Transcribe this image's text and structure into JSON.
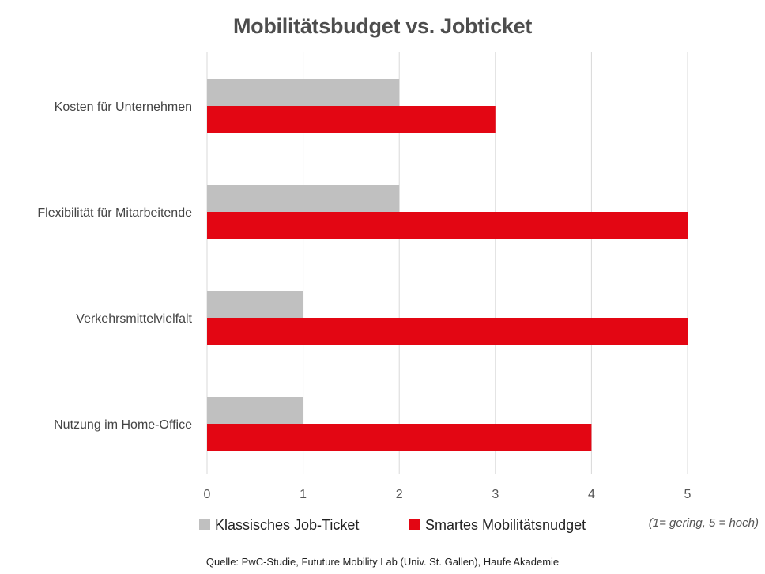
{
  "chart_data": {
    "type": "bar",
    "orientation": "horizontal",
    "title": "Mobilitätsbudget vs. Jobticket",
    "categories": [
      "Kosten für Unternehmen",
      "Flexibilität für Mitarbeitende",
      "Verkehrsmittelvielfalt",
      "Nutzung im Home-Office"
    ],
    "series": [
      {
        "name": "Klassisches Job-Ticket",
        "values": [
          2,
          2,
          1,
          1
        ],
        "color": "#c0c0c0"
      },
      {
        "name": "Smartes Mobilitätsnudget",
        "values": [
          3,
          5,
          5,
          4
        ],
        "color": "#e30613"
      }
    ],
    "xlim": [
      0,
      5
    ],
    "xticks": [
      "0",
      "1",
      "2",
      "3",
      "4",
      "5"
    ],
    "grid": true,
    "legend_position": "bottom",
    "note": "(1= gering, 5 = hoch)",
    "source": "Quelle: PwC-Studie, Fututure Mobility Lab (Univ. St. Gallen), Haufe Akademie"
  }
}
